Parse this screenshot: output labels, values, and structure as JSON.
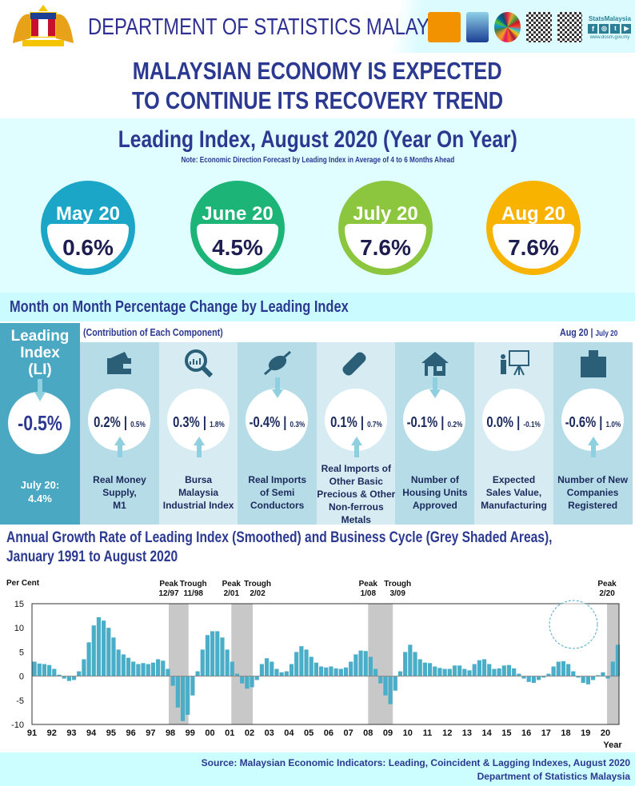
{
  "header": {
    "department": "DEPARTMENT OF STATISTICS MALAYSIA",
    "logos": [
      "census-2020-logo",
      "mystats-day-logo",
      "sdg-wheel-logo",
      "qr-code",
      "facebook-qr-code",
      "statsmalaysia-social-logo"
    ],
    "social_brand": "StatsMalaysia",
    "website": "www.dosm.gov.my"
  },
  "headline": {
    "line1": "MALAYSIAN ECONOMY IS EXPECTED",
    "line2": "TO CONTINUE ITS RECOVERY TREND"
  },
  "yoy": {
    "title": "Leading Index, August 2020 (Year On Year)",
    "note": "Note: Economic Direction Forecast by Leading Index in Average of 4 to 6 Months Ahead",
    "months": [
      {
        "label": "May 20",
        "value": "0.6%",
        "color": "#1ba6c8"
      },
      {
        "label": "June 20",
        "value": "4.5%",
        "color": "#1cb477"
      },
      {
        "label": "July 20",
        "value": "7.6%",
        "color": "#8cc63f"
      },
      {
        "label": "Aug 20",
        "value": "7.6%",
        "color": "#f8b300"
      }
    ]
  },
  "mom": {
    "title": "Month on Month Percentage Change by Leading Index",
    "subtitle": "(Contribution of Each Component)",
    "legend_current": "Aug 20",
    "legend_sep": "|",
    "legend_prev": "July 20",
    "li": {
      "label1": "Leading",
      "label2": "Index",
      "label3": "(LI)",
      "value": "-0.5%",
      "direction": "down",
      "prev_label": "July 20:",
      "prev_value": "4.4%"
    },
    "components": [
      {
        "icon": "wallet-icon",
        "value": "0.2%",
        "prev": "0.5%",
        "direction": "up",
        "name": [
          "Real Money",
          "Supply,",
          "M1"
        ]
      },
      {
        "icon": "magnifier-chart-icon",
        "value": "0.3%",
        "prev": "1.8%",
        "direction": "up",
        "name": [
          "Bursa",
          "Malaysia",
          "Industrial Index"
        ]
      },
      {
        "icon": "semiconductor-chip-icon",
        "value": "-0.4%",
        "prev": "0.3%",
        "direction": "down",
        "name": [
          "Real Imports",
          "of Semi",
          "Conductors"
        ]
      },
      {
        "icon": "metal-bar-icon",
        "value": "0.1%",
        "prev": "0.7%",
        "direction": "up",
        "name": [
          "Real Imports of",
          "Other Basic",
          "Precious & Other",
          "Non-ferrous",
          "Metals"
        ]
      },
      {
        "icon": "house-icon",
        "value": "-0.1%",
        "prev": "0.2%",
        "direction": "down",
        "name": [
          "Number of",
          "Housing Units",
          "Approved"
        ]
      },
      {
        "icon": "presentation-icon",
        "value": "0.0%",
        "prev": "-0.1%",
        "direction": "none",
        "name": [
          "Expected",
          "Sales Value,",
          "Manufacturing"
        ]
      },
      {
        "icon": "buildings-icon",
        "value": "-0.6%",
        "prev": "1.0%",
        "direction": "up",
        "name": [
          "Number of New",
          "Companies",
          "Registered"
        ]
      }
    ]
  },
  "chart_title": {
    "line1": "Annual Growth Rate of Leading Index (Smoothed) and Business Cycle (Grey Shaded Areas),",
    "line2": "January 1991 to August 2020"
  },
  "chart_data": {
    "type": "bar",
    "ylabel": "Per Cent",
    "xlabel": "Year",
    "ylim": [
      -10,
      15
    ],
    "yticks": [
      15,
      10,
      5,
      0,
      -5,
      -10
    ],
    "xticks": [
      "91",
      "92",
      "93",
      "94",
      "95",
      "96",
      "97",
      "98",
      "99",
      "00",
      "01",
      "02",
      "03",
      "04",
      "05",
      "06",
      "07",
      "08",
      "09",
      "10",
      "11",
      "12",
      "13",
      "14",
      "15",
      "16",
      "17",
      "18",
      "19",
      "20"
    ],
    "bar_color": "#4aaec8",
    "shade_color": "#c8c8c8",
    "recessions": [
      {
        "peak_label": "Peak",
        "peak": "12/97",
        "trough_label": "Trough",
        "trough": "11/98",
        "start": "1997-12",
        "end": "1998-11"
      },
      {
        "peak_label": "Peak",
        "peak": "2/01",
        "trough_label": "Trough",
        "trough": "2/02",
        "start": "2001-02",
        "end": "2002-02"
      },
      {
        "peak_label": "Peak",
        "peak": "1/08",
        "trough_label": "Trough",
        "trough": "3/09",
        "start": "2008-01",
        "end": "2009-03"
      },
      {
        "peak_label": "Peak",
        "peak": "2/20",
        "trough_label": "",
        "trough": "",
        "start": "2020-02",
        "end": "2020-08"
      }
    ],
    "x": [
      "1991Q1",
      "1991Q2",
      "1991Q3",
      "1991Q4",
      "1992Q1",
      "1992Q2",
      "1992Q3",
      "1992Q4",
      "1993Q1",
      "1993Q2",
      "1993Q3",
      "1993Q4",
      "1994Q1",
      "1994Q2",
      "1994Q3",
      "1994Q4",
      "1995Q1",
      "1995Q2",
      "1995Q3",
      "1995Q4",
      "1996Q1",
      "1996Q2",
      "1996Q3",
      "1996Q4",
      "1997Q1",
      "1997Q2",
      "1997Q3",
      "1997Q4",
      "1998Q1",
      "1998Q2",
      "1998Q3",
      "1998Q4",
      "1999Q1",
      "1999Q2",
      "1999Q3",
      "1999Q4",
      "2000Q1",
      "2000Q2",
      "2000Q3",
      "2000Q4",
      "2001Q1",
      "2001Q2",
      "2001Q3",
      "2001Q4",
      "2002Q1",
      "2002Q2",
      "2002Q3",
      "2002Q4",
      "2003Q1",
      "2003Q2",
      "2003Q3",
      "2003Q4",
      "2004Q1",
      "2004Q2",
      "2004Q3",
      "2004Q4",
      "2005Q1",
      "2005Q2",
      "2005Q3",
      "2005Q4",
      "2006Q1",
      "2006Q2",
      "2006Q3",
      "2006Q4",
      "2007Q1",
      "2007Q2",
      "2007Q3",
      "2007Q4",
      "2008Q1",
      "2008Q2",
      "2008Q3",
      "2008Q4",
      "2009Q1",
      "2009Q2",
      "2009Q3",
      "2009Q4",
      "2010Q1",
      "2010Q2",
      "2010Q3",
      "2010Q4",
      "2011Q1",
      "2011Q2",
      "2011Q3",
      "2011Q4",
      "2012Q1",
      "2012Q2",
      "2012Q3",
      "2012Q4",
      "2013Q1",
      "2013Q2",
      "2013Q3",
      "2013Q4",
      "2014Q1",
      "2014Q2",
      "2014Q3",
      "2014Q4",
      "2015Q1",
      "2015Q2",
      "2015Q3",
      "2015Q4",
      "2016Q1",
      "2016Q2",
      "2016Q3",
      "2016Q4",
      "2017Q1",
      "2017Q2",
      "2017Q3",
      "2017Q4",
      "2018Q1",
      "2018Q2",
      "2018Q3",
      "2018Q4",
      "2019Q1",
      "2019Q2",
      "2019Q3",
      "2019Q4",
      "2020Q1",
      "2020Q2",
      "2020Q3"
    ],
    "values": [
      3,
      2.6,
      2.5,
      2.3,
      1.5,
      0.3,
      -0.5,
      -1.0,
      -0.8,
      1,
      3.5,
      7,
      10.5,
      12.2,
      11.5,
      10,
      8,
      5.5,
      4.5,
      3.8,
      3,
      2.5,
      2.7,
      2.5,
      2.8,
      3.5,
      3.2,
      1.5,
      -2,
      -6.5,
      -9.3,
      -8,
      -4,
      1,
      5.5,
      8.5,
      9.3,
      9.3,
      8,
      5.5,
      3,
      0.5,
      -1.5,
      -2.6,
      -2.3,
      -0.8,
      2.5,
      3.7,
      3,
      1.5,
      0.8,
      1,
      2.5,
      5,
      6.2,
      5.5,
      4,
      2.8,
      2,
      1.8,
      2,
      1.6,
      1.5,
      1.8,
      3,
      4.5,
      5.3,
      5.2,
      4,
      1.5,
      -1.5,
      -4,
      -5.8,
      -3,
      1,
      5,
      6.5,
      5,
      3.5,
      2.8,
      2.7,
      2,
      1.7,
      1.5,
      1.5,
      2.2,
      2.2,
      1.5,
      1.2,
      2.5,
      3.3,
      3.5,
      2.5,
      1.5,
      1.6,
      2.2,
      2.3,
      1.6,
      0.5,
      -0.5,
      -1.2,
      -1.4,
      -0.8,
      -0.3,
      0.5,
      2,
      3,
      3.1,
      2.5,
      1,
      -0.3,
      -1.4,
      -1.7,
      -0.8,
      0.2,
      0.8,
      -0.5,
      3,
      6.5
    ]
  },
  "footer": {
    "source": "Source:  Malaysian Economic Indicators: Leading, Coincident & Lagging Indexes, August 2020",
    "org": "Department of Statistics Malaysia"
  }
}
